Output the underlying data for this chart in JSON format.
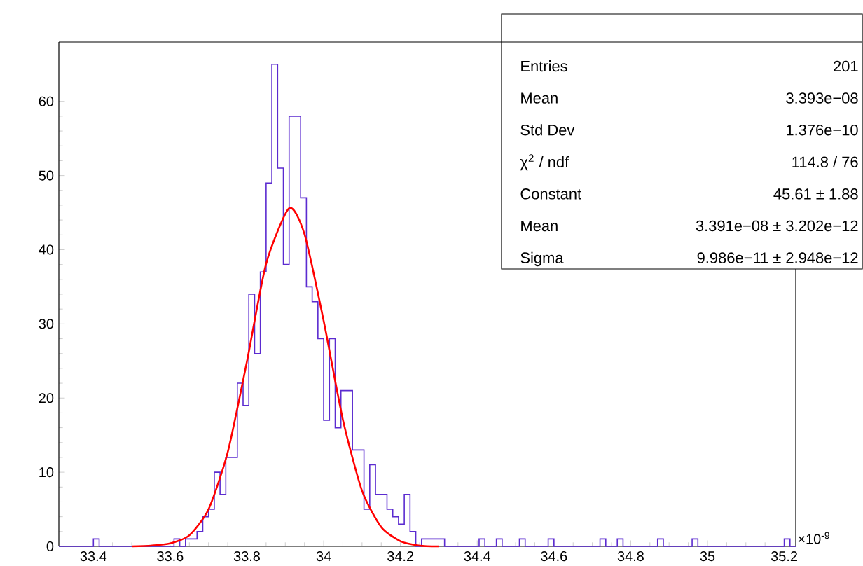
{
  "chart_data": {
    "type": "histogram",
    "xlim": [
      33.31,
      35.23
    ],
    "ylim": [
      0,
      68
    ],
    "xticks": [
      33.4,
      33.6,
      33.8,
      34,
      34.2,
      34.4,
      34.6,
      34.8,
      35,
      35.2
    ],
    "yticks": [
      0,
      10,
      20,
      30,
      40,
      50,
      60
    ],
    "series": [
      {
        "type": "histogram",
        "color": "#5b2bd0",
        "bins": [
          33.31,
          33.325,
          33.34,
          33.355,
          33.37,
          33.385,
          33.4,
          33.415,
          33.43,
          33.445,
          33.46,
          33.475,
          33.49,
          33.505,
          33.52,
          33.535,
          33.55,
          33.565,
          33.58,
          33.595,
          33.61,
          33.625,
          33.64,
          33.655,
          33.67,
          33.685,
          33.7,
          33.715,
          33.73,
          33.745,
          33.76,
          33.775,
          33.79,
          33.805,
          33.82,
          33.835,
          33.85,
          33.865,
          33.88,
          33.895,
          33.91,
          33.925,
          33.94,
          33.955,
          33.97,
          33.985,
          34,
          34.015,
          34.03,
          34.045,
          34.06,
          34.075,
          34.09,
          34.105,
          34.12,
          34.135,
          34.15,
          34.165,
          34.18,
          34.195,
          34.21,
          34.225,
          34.24,
          34.255,
          34.27,
          34.285,
          34.3,
          34.315,
          34.33,
          34.345,
          34.36,
          34.375,
          34.39,
          34.405,
          34.42,
          34.435,
          34.45,
          34.465,
          34.48,
          34.495,
          34.51,
          34.525,
          34.54,
          34.555,
          34.57,
          34.585,
          34.6,
          34.615,
          34.63,
          34.645,
          34.66,
          34.675,
          34.69,
          34.705,
          34.72,
          34.735,
          34.75,
          34.765,
          34.78,
          34.795,
          34.81,
          34.825,
          34.84,
          34.855,
          34.87,
          34.885,
          34.9,
          34.915,
          34.93,
          34.945,
          34.96,
          34.975,
          34.99,
          35.005,
          35.02,
          35.035,
          35.05,
          35.065,
          35.08,
          35.095,
          35.11,
          35.125,
          35.14,
          35.155,
          35.17,
          35.185,
          35.2,
          35.215,
          35.23
        ],
        "values": [
          0,
          0,
          0,
          0,
          0,
          0,
          1,
          0,
          0,
          0,
          0,
          0,
          0,
          0,
          0,
          0,
          0,
          0,
          0,
          0,
          1,
          0,
          1,
          1,
          2,
          4,
          5,
          10,
          7,
          12,
          12,
          22,
          19,
          34,
          26,
          37,
          49,
          65,
          51,
          38,
          58,
          58,
          47,
          35,
          33,
          28,
          17,
          28,
          16,
          21,
          21,
          13,
          13,
          5,
          11,
          7,
          7,
          5,
          4,
          3,
          7,
          2,
          0,
          1,
          1,
          1,
          1,
          0,
          0,
          0,
          0,
          0,
          0,
          1,
          0,
          0,
          1,
          0,
          0,
          0,
          1,
          0,
          0,
          0,
          0,
          1,
          0,
          0,
          0,
          0,
          0,
          0,
          0,
          0,
          1,
          0,
          0,
          1,
          0,
          0,
          0,
          0,
          0,
          0,
          1,
          0,
          0,
          0,
          0,
          0,
          1,
          0,
          0,
          0,
          0,
          0,
          0,
          0,
          0,
          0,
          0,
          0,
          0,
          0,
          0,
          0,
          1,
          0
        ]
      },
      {
        "type": "line",
        "color": "#ff0000",
        "x": [
          33.5,
          33.55,
          33.6,
          33.65,
          33.7,
          33.75,
          33.8,
          33.85,
          33.91,
          33.95,
          34.0,
          34.05,
          34.1,
          34.15,
          34.2,
          34.25,
          34.3
        ],
        "values": [
          0,
          0.1,
          0.4,
          1.5,
          5,
          12.7,
          24.9,
          38.1,
          45.6,
          42.1,
          30.4,
          17.1,
          7.5,
          2.6,
          0.7,
          0.1,
          0
        ]
      }
    ],
    "annotations": [
      "Entries",
      "201",
      "Mean",
      "3.393e−08",
      "Std Dev",
      "1.376e−10",
      "χ$^{2}$ / ndf",
      "114.8 / 76",
      "Constant",
      "45.61 ± 1.88",
      "Mean",
      "3.391e−08 ± 3.202e−12",
      "Sigma",
      "9.986e−11 ± 2.948e−12",
      "×10$^{-9}$"
    ]
  }
}
